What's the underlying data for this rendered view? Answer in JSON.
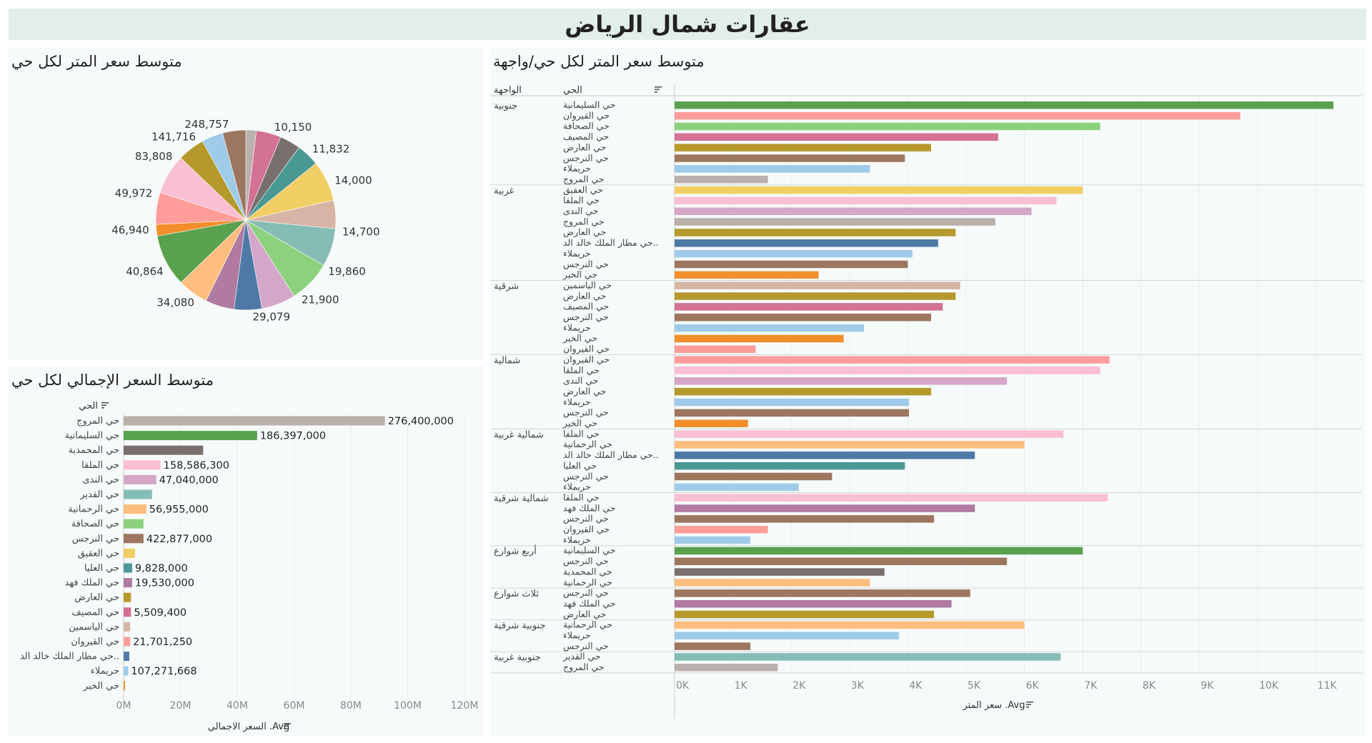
{
  "dashboard": {
    "title": "عقارات شمال الرياض"
  },
  "colors": {
    "حي السليمانية": "#59a14f",
    "حي القيروان": "#ff9d9a",
    "حي الصحافة": "#8cd17d",
    "حي المصيف": "#d37295",
    "حي العارض": "#b6992d",
    "حي النرجس": "#9d7660",
    "حريملاء": "#a0cbe8",
    "حي المروج": "#bab0ac",
    "حي العقيق": "#f1ce63",
    "حي الملقا": "#fabfd2",
    "حي الندى": "#d4a6c8",
    "حي مطار الملك خالد الد..": "#4e79a7",
    "حي الخير": "#f28e2b",
    "حي الياسمين": "#d7b5a6",
    "حي الرحمانية": "#ffbe7d",
    "حي العليا": "#499894",
    "حي الملك فهد": "#b07aa1",
    "حي المحمدية": "#79706e",
    "حي القدير": "#86bcb6"
  },
  "chart_data": [
    {
      "id": "pie",
      "type": "pie",
      "title": "متوسط سعر المتر لكل حي",
      "slices": [
        {
          "category": "حي المروج",
          "value": 1800
        },
        {
          "category": "حي المصيف",
          "value": 4300
        },
        {
          "category": "حي المحمدية",
          "value": 3600
        },
        {
          "category": "حي العليا",
          "value": 3950
        },
        {
          "category": "حي العقيق",
          "value": 7000
        },
        {
          "category": "حي الياسمين",
          "value": 4900
        },
        {
          "category": "حي القدير",
          "value": 6600
        },
        {
          "category": "حي الصحافة",
          "value": 7300
        },
        {
          "category": "حي الندى",
          "value": 5900
        },
        {
          "category": "حي مطار الملك خالد الد..",
          "value": 4800
        },
        {
          "category": "حي الملك فهد",
          "value": 5000
        },
        {
          "category": "حي الرحمانية",
          "value": 5300
        },
        {
          "category": "حي السليمانية",
          "value": 9000
        },
        {
          "category": "حي الخير",
          "value": 2000
        },
        {
          "category": "حي القيروان",
          "value": 5500
        },
        {
          "category": "حي الملقا",
          "value": 6900
        },
        {
          "category": "حي العارض",
          "value": 4700
        },
        {
          "category": "حريملاء",
          "value": 3700
        },
        {
          "category": "حي النرجس",
          "value": 4000
        }
      ],
      "labels": [
        {
          "text": "10,150",
          "angle": 17
        },
        {
          "text": "11,832",
          "angle": 43
        },
        {
          "text": "14,000",
          "angle": 66
        },
        {
          "text": "14,700",
          "angle": 97
        },
        {
          "text": "19,860",
          "angle": 122
        },
        {
          "text": "21,900",
          "angle": 145
        },
        {
          "text": "29,079",
          "angle": 176
        },
        {
          "text": "34,080",
          "angle": 212
        },
        {
          "text": "40,864",
          "angle": 238
        },
        {
          "text": "46,940",
          "angle": 264
        },
        {
          "text": "49,972",
          "angle": 286
        },
        {
          "text": "83,808",
          "angle": 311
        },
        {
          "text": "141,716",
          "angle": 329
        },
        {
          "text": "248,757",
          "angle": 350
        }
      ]
    },
    {
      "id": "total-bar",
      "type": "bar",
      "title": "متوسط السعر الإجمالي لكل حي",
      "row_header": "الحي",
      "xlabel": "السعر الاجمالي .Avg",
      "xlim": [
        0,
        120000000
      ],
      "ticks": [
        {
          "value": 0,
          "label": "0M"
        },
        {
          "value": 20000000,
          "label": "20M"
        },
        {
          "value": 40000000,
          "label": "40M"
        },
        {
          "value": 60000000,
          "label": "60M"
        },
        {
          "value": 80000000,
          "label": "80M"
        },
        {
          "value": 100000000,
          "label": "100M"
        },
        {
          "value": 120000000,
          "label": "120M"
        }
      ],
      "rows": [
        {
          "category": "حي المروج",
          "value": 92000000,
          "label": "276,400,000"
        },
        {
          "category": "حي السليمانية",
          "value": 47000000,
          "label": "186,397,000"
        },
        {
          "category": "حي المحمدية",
          "value": 28000000,
          "label": ""
        },
        {
          "category": "حي الملقا",
          "value": 13000000,
          "label": "158,586,300"
        },
        {
          "category": "حي الندى",
          "value": 11500000,
          "label": "47,040,000"
        },
        {
          "category": "حي القدير",
          "value": 10000000,
          "label": ""
        },
        {
          "category": "حي الرحمانية",
          "value": 8000000,
          "label": "56,955,000"
        },
        {
          "category": "حي الصحافة",
          "value": 7000000,
          "label": ""
        },
        {
          "category": "حي النرجس",
          "value": 7000000,
          "label": "422,877,000"
        },
        {
          "category": "حي العقيق",
          "value": 4000000,
          "label": ""
        },
        {
          "category": "حي العليا",
          "value": 3000000,
          "label": "9,828,000"
        },
        {
          "category": "حي الملك فهد",
          "value": 3000000,
          "label": "19,530,000"
        },
        {
          "category": "حي العارض",
          "value": 2600000,
          "label": ""
        },
        {
          "category": "حي المصيف",
          "value": 2600000,
          "label": "5,509,400"
        },
        {
          "category": "حي الياسمين",
          "value": 2300000,
          "label": ""
        },
        {
          "category": "حي القيروان",
          "value": 2300000,
          "label": "21,701,250"
        },
        {
          "category": "حي مطار الملك خالد الد..",
          "value": 2000000,
          "label": ""
        },
        {
          "category": "حريملاء",
          "value": 1600000,
          "label": "107,271,668"
        },
        {
          "category": "حي الخير",
          "value": 500000,
          "label": ""
        }
      ]
    },
    {
      "id": "facade-bar",
      "type": "bar",
      "title": "متوسط سعر المتر لكل حي/واجهة",
      "group_header": "الواجهة",
      "row_header": "الحي",
      "xlabel": "سعر المتر .Avg",
      "xlim": [
        0,
        11500
      ],
      "ticks": [
        {
          "value": 0,
          "label": "0K"
        },
        {
          "value": 1000,
          "label": "1K"
        },
        {
          "value": 2000,
          "label": "2K"
        },
        {
          "value": 3000,
          "label": "3K"
        },
        {
          "value": 4000,
          "label": "4K"
        },
        {
          "value": 5000,
          "label": "5K"
        },
        {
          "value": 6000,
          "label": "6K"
        },
        {
          "value": 7000,
          "label": "7K"
        },
        {
          "value": 8000,
          "label": "8K"
        },
        {
          "value": 9000,
          "label": "9K"
        },
        {
          "value": 10000,
          "label": "10K"
        },
        {
          "value": 11000,
          "label": "11K"
        }
      ],
      "groups": [
        {
          "facade": "جنوبية",
          "rows": [
            {
              "category": "حي السليمانية",
              "value": 11300
            },
            {
              "category": "حي القيروان",
              "value": 9700
            },
            {
              "category": "حي الصحافة",
              "value": 7300
            },
            {
              "category": "حي المصيف",
              "value": 5550
            },
            {
              "category": "حي العارض",
              "value": 4400
            },
            {
              "category": "حي النرجس",
              "value": 3950
            },
            {
              "category": "حريملاء",
              "value": 3350
            },
            {
              "category": "حي المروج",
              "value": 1600
            }
          ]
        },
        {
          "facade": "غربية",
          "rows": [
            {
              "category": "حي العقيق",
              "value": 7000
            },
            {
              "category": "حي الملقا",
              "value": 6550
            },
            {
              "category": "حي الندى",
              "value": 6120
            },
            {
              "category": "حي المروج",
              "value": 5500
            },
            {
              "category": "حي العارض",
              "value": 4820
            },
            {
              "category": "حي مطار الملك خالد الد..",
              "value": 4520
            },
            {
              "category": "حريملاء",
              "value": 4080
            },
            {
              "category": "حي النرجس",
              "value": 4000
            },
            {
              "category": "حي الخير",
              "value": 2470
            }
          ]
        },
        {
          "facade": "شرقية",
          "rows": [
            {
              "category": "حي الياسمين",
              "value": 4900
            },
            {
              "category": "حي العارض",
              "value": 4820
            },
            {
              "category": "حي المصيف",
              "value": 4600
            },
            {
              "category": "حي النرجس",
              "value": 4400
            },
            {
              "category": "حريملاء",
              "value": 3250
            },
            {
              "category": "حي الخير",
              "value": 2900
            },
            {
              "category": "حي القيروان",
              "value": 1390
            }
          ]
        },
        {
          "facade": "شمالية",
          "rows": [
            {
              "category": "حي القيروان",
              "value": 7460
            },
            {
              "category": "حي الملقا",
              "value": 7300
            },
            {
              "category": "حي الندى",
              "value": 5700
            },
            {
              "category": "حي العارض",
              "value": 4400
            },
            {
              "category": "حريملاء",
              "value": 4020
            },
            {
              "category": "حي النرجس",
              "value": 4020
            },
            {
              "category": "حي الخير",
              "value": 1260
            }
          ]
        },
        {
          "facade": "شمالية غربية",
          "rows": [
            {
              "category": "حي الملقا",
              "value": 6670
            },
            {
              "category": "حي الرحمانية",
              "value": 6000
            },
            {
              "category": "حي مطار الملك خالد الد..",
              "value": 5150
            },
            {
              "category": "حي العليا",
              "value": 3950
            },
            {
              "category": "حي النرجس",
              "value": 2700
            },
            {
              "category": "حريملاء",
              "value": 2130
            }
          ]
        },
        {
          "facade": "شمالية شرقية",
          "rows": [
            {
              "category": "حي الملقا",
              "value": 7430
            },
            {
              "category": "حي الملك فهد",
              "value": 5150
            },
            {
              "category": "حي النرجس",
              "value": 4450
            },
            {
              "category": "حي القيروان",
              "value": 1600
            },
            {
              "category": "حريملاء",
              "value": 1300
            }
          ]
        },
        {
          "facade": "أربع شوارع",
          "rows": [
            {
              "category": "حي السليمانية",
              "value": 7000
            },
            {
              "category": "حي النرجس",
              "value": 5700
            },
            {
              "category": "حي المحمدية",
              "value": 3600
            },
            {
              "category": "حي الرحمانية",
              "value": 3350
            }
          ]
        },
        {
          "facade": "ثلاث شوارع",
          "rows": [
            {
              "category": "حي النرجس",
              "value": 5070
            },
            {
              "category": "حي الملك فهد",
              "value": 4750
            },
            {
              "category": "حي العارض",
              "value": 4450
            }
          ]
        },
        {
          "facade": "جنوبية شرقية",
          "rows": [
            {
              "category": "حي الرحمانية",
              "value": 6000
            },
            {
              "category": "حريملاء",
              "value": 3850
            },
            {
              "category": "حي النرجس",
              "value": 1300
            }
          ]
        },
        {
          "facade": "جنوبية غربية",
          "rows": [
            {
              "category": "حي القدير",
              "value": 6620
            },
            {
              "category": "حي المروج",
              "value": 1770
            }
          ]
        }
      ]
    }
  ]
}
